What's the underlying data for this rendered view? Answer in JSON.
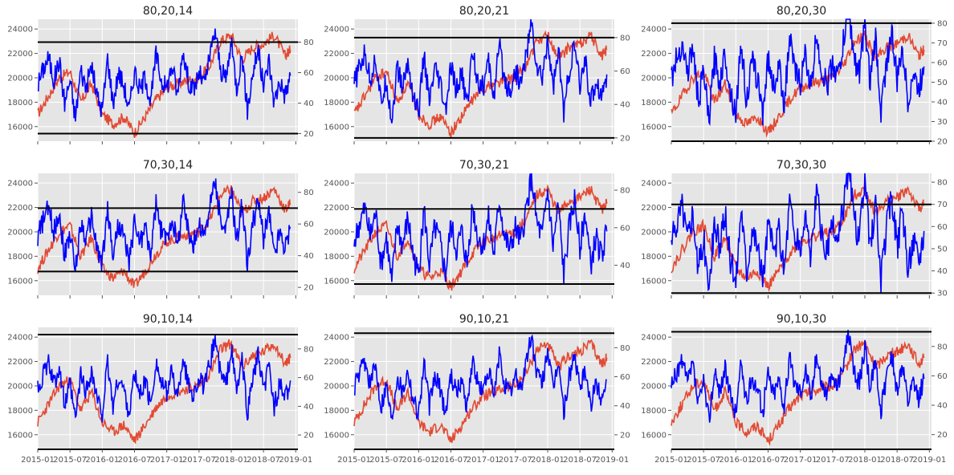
{
  "figure": {
    "background": "#ffffff"
  },
  "style": {
    "panel_bg": "#e5e5e5",
    "grid": "#ffffff",
    "price_color": "#e24a33",
    "osc_color": "#0000ff",
    "hline_color": "#000000"
  },
  "chart_data": {
    "type": "line",
    "grid": true,
    "x_ticks": [
      "2015-01",
      "2015-07",
      "2016-01",
      "2016-07",
      "2017-01",
      "2017-07",
      "2018-01",
      "2018-07",
      "2019-01"
    ],
    "x_tick_labels_shown_on": "bottom row",
    "xlim": [
      "2015-01",
      "2019-01"
    ],
    "left_axis": {
      "ylim": [
        14800,
        24800
      ],
      "ticks": [
        16000,
        18000,
        20000,
        22000,
        24000
      ]
    },
    "series_shared": {
      "price": {
        "x": [
          "2015-01",
          "2015-03",
          "2015-05",
          "2015-07",
          "2015-09",
          "2015-11",
          "2016-01",
          "2016-03",
          "2016-05",
          "2016-07",
          "2016-09",
          "2016-11",
          "2017-01",
          "2017-03",
          "2017-05",
          "2017-07",
          "2017-09",
          "2017-11",
          "2018-01",
          "2018-03",
          "2018-05",
          "2018-07",
          "2018-09",
          "2018-11",
          "2018-12"
        ],
        "y": [
          17000,
          18500,
          20000,
          20500,
          18000,
          19500,
          17000,
          16200,
          16800,
          15500,
          16800,
          18200,
          19200,
          19500,
          19800,
          20000,
          21000,
          23000,
          23500,
          21500,
          22500,
          22800,
          23500,
          21800,
          22300
        ]
      }
    },
    "panels": [
      {
        "title": "80,20,14",
        "right_ticks": [
          20,
          40,
          60,
          80
        ],
        "right_ylim": [
          15,
          95
        ],
        "hlines": [
          80,
          20
        ]
      },
      {
        "title": "80,20,21",
        "right_ticks": [
          20,
          40,
          60,
          80
        ],
        "right_ylim": [
          18,
          91
        ],
        "hlines": [
          80,
          20
        ]
      },
      {
        "title": "80,20,30",
        "right_ticks": [
          20,
          30,
          40,
          50,
          60,
          70,
          80
        ],
        "right_ylim": [
          20,
          82
        ],
        "hlines": [
          80,
          20
        ]
      },
      {
        "title": "70,30,14",
        "right_ticks": [
          20,
          40,
          60,
          80
        ],
        "right_ylim": [
          15,
          92
        ],
        "hlines": [
          70,
          30
        ]
      },
      {
        "title": "70,30,21",
        "right_ticks": [
          40,
          60,
          80
        ],
        "right_ylim": [
          24,
          89
        ],
        "hlines": [
          70,
          30
        ]
      },
      {
        "title": "70,30,30",
        "right_ticks": [
          30,
          40,
          50,
          60,
          70,
          80
        ],
        "right_ylim": [
          29,
          84
        ],
        "hlines": [
          70,
          30
        ]
      },
      {
        "title": "90,10,14",
        "right_ticks": [
          20,
          40,
          60,
          80
        ],
        "right_ylim": [
          10,
          95
        ],
        "hlines": [
          90,
          10
        ]
      },
      {
        "title": "90,10,21",
        "right_ticks": [
          20,
          40,
          60,
          80
        ],
        "right_ylim": [
          10,
          94
        ],
        "hlines": [
          90,
          10
        ]
      },
      {
        "title": "90,10,30",
        "right_ticks": [
          20,
          40,
          60,
          80
        ],
        "right_ylim": [
          10,
          93
        ],
        "hlines": [
          90,
          10
        ]
      }
    ],
    "oscillator_shape": {
      "x": [
        "2015-01",
        "2015-02",
        "2015-03",
        "2015-04",
        "2015-05",
        "2015-06",
        "2015-07",
        "2015-08",
        "2015-09",
        "2015-10",
        "2015-11",
        "2015-12",
        "2016-01",
        "2016-02",
        "2016-03",
        "2016-04",
        "2016-05",
        "2016-06",
        "2016-07",
        "2016-08",
        "2016-09",
        "2016-10",
        "2016-11",
        "2016-12",
        "2017-01",
        "2017-02",
        "2017-03",
        "2017-04",
        "2017-05",
        "2017-06",
        "2017-07",
        "2017-08",
        "2017-09",
        "2017-10",
        "2017-11",
        "2017-12",
        "2018-01",
        "2018-02",
        "2018-03",
        "2018-04",
        "2018-05",
        "2018-06",
        "2018-07",
        "2018-08",
        "2018-09",
        "2018-10",
        "2018-11",
        "2018-12"
      ],
      "y": [
        52,
        62,
        70,
        55,
        68,
        40,
        55,
        30,
        62,
        50,
        65,
        45,
        35,
        70,
        40,
        60,
        52,
        35,
        62,
        48,
        58,
        40,
        72,
        55,
        50,
        65,
        45,
        75,
        55,
        48,
        60,
        52,
        70,
        88,
        62,
        55,
        80,
        50,
        72,
        35,
        60,
        75,
        50,
        68,
        40,
        55,
        45,
        58
      ]
    }
  }
}
